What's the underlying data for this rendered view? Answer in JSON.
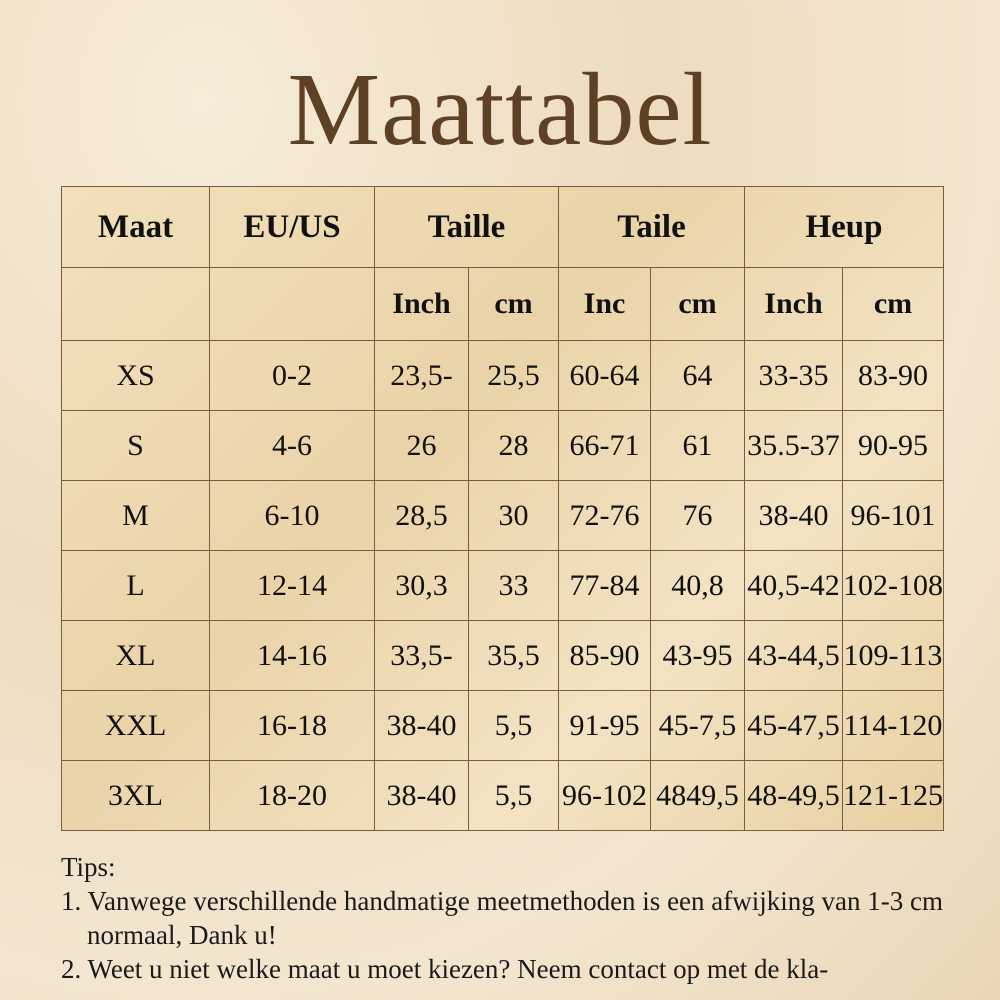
{
  "title": "Maattabel",
  "table": {
    "header": [
      "Maat",
      "EU/US",
      "Taille",
      "Taile",
      "Heup"
    ],
    "subheader": [
      "",
      "",
      "Inch",
      "cm",
      "Inc",
      "cm",
      "Inch",
      "cm"
    ],
    "rows": [
      [
        "XS",
        "0-2",
        "23,5-",
        "25,5",
        "60-64",
        "64",
        "33-35",
        "83-90"
      ],
      [
        "S",
        "4-6",
        "26",
        "28",
        "66-71",
        "61",
        "35.5-37",
        "90-95"
      ],
      [
        "M",
        "6-10",
        "28,5",
        "30",
        "72-76",
        "76",
        "38-40",
        "96-101"
      ],
      [
        "L",
        "12-14",
        "30,3",
        "33",
        "77-84",
        "40,8",
        "40,5-42",
        "102-108"
      ],
      [
        "XL",
        "14-16",
        "33,5-",
        "35,5",
        "85-90",
        "43-95",
        "43-44,5",
        "109-113"
      ],
      [
        "XXL",
        "16-18",
        "38-40",
        "5,5",
        "91-95",
        "45-7,5",
        "45-47,5",
        "114-120"
      ],
      [
        "3XL",
        "18-20",
        "38-40",
        "5,5",
        "96-102",
        "4849,5",
        "48-49,5",
        "121-125"
      ]
    ]
  },
  "tips": {
    "heading": "Tips:",
    "items": [
      "1. Vanwege verschillende handmatige meetmethoden is een afwijking van 1-3 cm normaal, Dank u!",
      "2. Weet u niet welke maat u moet kiezen? Neem contact op met de kla-"
    ]
  },
  "colors": {
    "title": "#5e4024",
    "grid": "#7a5d3c",
    "background": "#f3e6d0"
  }
}
